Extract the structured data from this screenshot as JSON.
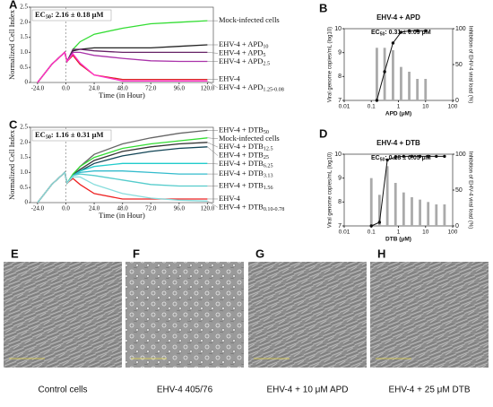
{
  "chart_data": [
    {
      "type": "line",
      "panel": "A",
      "xlabel": "Time (in Hour)",
      "ylabel": "Normalized Cell Index",
      "annotation": {
        "text": "EC",
        "sub": "50",
        "rest": ": 2.16 ± 0.18 μM"
      },
      "xlim": [
        -30,
        125
      ],
      "ylim": [
        0,
        2.5
      ],
      "xticks": [
        {
          "value": -24,
          "label": "-24.0"
        },
        {
          "value": 0,
          "label": "0.0"
        },
        {
          "value": 24,
          "label": "24.0"
        },
        {
          "value": 48,
          "label": "48.0"
        },
        {
          "value": 72,
          "label": "72.0"
        },
        {
          "value": 96,
          "label": "96.0"
        },
        {
          "value": 120,
          "label": "120.0"
        }
      ],
      "yticks": [
        0,
        0.5,
        {
          "value": 1,
          "label": "1.0"
        },
        1.5,
        {
          "value": 2,
          "label": "2.0"
        },
        2.5
      ],
      "x": [
        -24,
        -12,
        -1,
        1,
        6,
        12,
        24,
        48,
        72,
        96,
        120
      ],
      "series": [
        {
          "name": "Mock-infected cells",
          "color": "#33dd33",
          "values": [
            0,
            0.6,
            1,
            0.7,
            1.1,
            1.35,
            1.6,
            1.8,
            1.95,
            2.0,
            2.05
          ]
        },
        {
          "name": "EHV-4 + APD",
          "sub": "10",
          "color": "#222222",
          "values": [
            0,
            0.6,
            1,
            0.7,
            1.05,
            1.1,
            1.15,
            1.15,
            1.15,
            1.2,
            1.25
          ]
        },
        {
          "name": "EHV-4 + APD",
          "sub": "5",
          "color": "#662266",
          "values": [
            0,
            0.6,
            1,
            0.7,
            1.1,
            1.1,
            1.05,
            1.0,
            1.0,
            1.0,
            1.0
          ]
        },
        {
          "name": "EHV-4 + APD",
          "sub": "2.5",
          "color": "#aa33aa",
          "values": [
            0,
            0.6,
            1,
            0.7,
            1.0,
            1.0,
            0.9,
            0.8,
            0.72,
            0.7,
            0.7
          ]
        },
        {
          "name": "EHV-4",
          "color": "#dd2222",
          "values": [
            0,
            0.6,
            1,
            0.7,
            0.9,
            0.6,
            0.25,
            0.1,
            0.1,
            0.1,
            0.1
          ]
        },
        {
          "name": "EHV-4 + APD",
          "sub": "1.25-0.08",
          "color": "#ff33cc",
          "values": [
            0,
            0.6,
            1,
            0.7,
            0.95,
            0.65,
            0.25,
            0.05,
            0.05,
            0.05,
            0.05
          ]
        }
      ]
    },
    {
      "type": "bar",
      "panel": "B",
      "title": "EHV-4 + APD",
      "xlabel": "APD (μM)",
      "ylabel": "Viral genome copies/mL (log10)",
      "y2label": "Inhibition of EHV-4 viral load (%)",
      "annotation": {
        "text": "EC",
        "sub": "50",
        "rest": ": 0.31 ± 0.09 μM"
      },
      "xscale": "log",
      "xlim": [
        0.01,
        100
      ],
      "xticks": [
        0.01,
        0.1,
        1,
        10,
        100
      ],
      "ylim": [
        7,
        10
      ],
      "yticks": [
        7,
        8,
        9,
        10
      ],
      "y2lim": [
        0,
        100
      ],
      "y2ticks": [
        0,
        50,
        100
      ],
      "x": [
        0.16,
        0.31,
        0.63,
        1.25,
        2.5,
        5,
        10
      ],
      "series": [
        {
          "type": "bar",
          "color": "#aaaaaa",
          "values": [
            9.2,
            9.2,
            9.1,
            8.4,
            8.2,
            7.9,
            7.9
          ]
        },
        {
          "type": "line",
          "axis": "y2",
          "color": "#111111",
          "values": [
            0,
            40,
            80,
            95,
            97,
            97,
            97
          ]
        }
      ]
    },
    {
      "type": "line",
      "panel": "C",
      "xlabel": "Time (in Hour)",
      "ylabel": "Normalized Cell Index",
      "annotation": {
        "text": "EC",
        "sub": "50",
        "rest": ": 1.16 ± 0.31 μM"
      },
      "xlim": [
        -30,
        125
      ],
      "ylim": [
        0,
        2.5
      ],
      "xticks": [
        {
          "value": -24,
          "label": "-24.0"
        },
        {
          "value": 0,
          "label": "0.0"
        },
        {
          "value": 24,
          "label": "24.0"
        },
        {
          "value": 48,
          "label": "48.0"
        },
        {
          "value": 72,
          "label": "72.0"
        },
        {
          "value": 96,
          "label": "96.0"
        },
        {
          "value": 120,
          "label": "120.0"
        }
      ],
      "yticks": [
        0,
        0.5,
        {
          "value": 1,
          "label": "1.0"
        },
        1.5,
        {
          "value": 2,
          "label": "2.0"
        },
        2.5
      ],
      "x": [
        -24,
        -12,
        -1,
        1,
        6,
        12,
        24,
        48,
        72,
        96,
        120
      ],
      "series": [
        {
          "name": "EHV-4 + DTB",
          "sub": "50",
          "color": "#666666",
          "values": [
            0,
            0.6,
            1,
            0.65,
            0.9,
            1.2,
            1.6,
            1.95,
            2.15,
            2.3,
            2.4
          ]
        },
        {
          "name": "Mock-infected cells",
          "color": "#33dd33",
          "values": [
            0,
            0.6,
            1,
            0.65,
            0.95,
            1.2,
            1.5,
            1.8,
            1.95,
            2.05,
            2.15
          ]
        },
        {
          "name": "EHV-4 + DTB",
          "sub": "12.5",
          "color": "#333333",
          "values": [
            0,
            0.6,
            1,
            0.65,
            0.9,
            1.1,
            1.4,
            1.7,
            1.85,
            1.95,
            2.0
          ]
        },
        {
          "name": "EHV-4 + DTB",
          "sub": "25",
          "color": "#114455",
          "values": [
            0,
            0.6,
            1,
            0.65,
            0.9,
            1.05,
            1.3,
            1.55,
            1.7,
            1.8,
            1.85
          ]
        },
        {
          "name": "EHV-4 + DTB",
          "sub": "6.25",
          "color": "#22cccc",
          "values": [
            0,
            0.6,
            1,
            0.65,
            0.9,
            1.05,
            1.2,
            1.3,
            1.3,
            1.3,
            1.3
          ]
        },
        {
          "name": "EHV-4 + DTB",
          "sub": "3.13",
          "color": "#33bbcc",
          "values": [
            0,
            0.6,
            1,
            0.65,
            0.9,
            1.0,
            1.05,
            1.05,
            1.0,
            0.95,
            0.95
          ]
        },
        {
          "name": "EHV-4 + DTB",
          "sub": "1.56",
          "color": "#55cccc",
          "values": [
            0,
            0.6,
            1,
            0.65,
            0.9,
            0.95,
            0.9,
            0.75,
            0.6,
            0.55,
            0.55
          ]
        },
        {
          "name": "EHV-4",
          "color": "#ee2222",
          "values": [
            0,
            0.6,
            1,
            0.65,
            0.8,
            0.6,
            0.3,
            0.12,
            0.12,
            0.12,
            0.12
          ]
        },
        {
          "name": "EHV-4 + DTB",
          "sub": "0.10-0.78",
          "color": "#88dddd",
          "values": [
            0,
            0.6,
            1,
            0.65,
            0.85,
            0.85,
            0.6,
            0.3,
            0.15,
            0.08,
            0.05
          ]
        }
      ]
    },
    {
      "type": "bar",
      "panel": "D",
      "title": "EHV-4 + DTB",
      "xlabel": "DTB (μM)",
      "ylabel": "Viral genome copies/mL (log10)",
      "y2label": "Inhibition of EHV-4 viral load (%)",
      "annotation": {
        "text": "EC",
        "sub": "50",
        "rest": ": 0.28 ± 0.05 μM"
      },
      "xscale": "log",
      "xlim": [
        0.01,
        100
      ],
      "xticks": [
        0.01,
        0.1,
        1,
        10,
        100
      ],
      "ylim": [
        7,
        10
      ],
      "yticks": [
        7,
        8,
        9,
        10
      ],
      "y2lim": [
        0,
        100
      ],
      "y2ticks": [
        0,
        50,
        100
      ],
      "x": [
        0.1,
        0.2,
        0.39,
        0.78,
        1.56,
        3.13,
        6.25,
        12.5,
        25,
        50
      ],
      "series": [
        {
          "type": "bar",
          "color": "#aaaaaa",
          "values": [
            9.0,
            8.3,
            9.5,
            8.8,
            8.4,
            8.2,
            8.1,
            8.0,
            7.9,
            7.9
          ]
        },
        {
          "type": "line",
          "axis": "y2",
          "color": "#111111",
          "values": [
            0,
            5,
            92,
            96,
            97,
            97,
            97,
            97,
            97,
            97
          ]
        }
      ]
    }
  ],
  "images": [
    {
      "panel": "E",
      "caption": "Control cells"
    },
    {
      "panel": "F",
      "caption": "EHV-4 405/76"
    },
    {
      "panel": "G",
      "caption": "EHV-4 + 10 μM APD"
    },
    {
      "panel": "H",
      "caption": "EHV-4 + 25 μM DTB"
    }
  ]
}
